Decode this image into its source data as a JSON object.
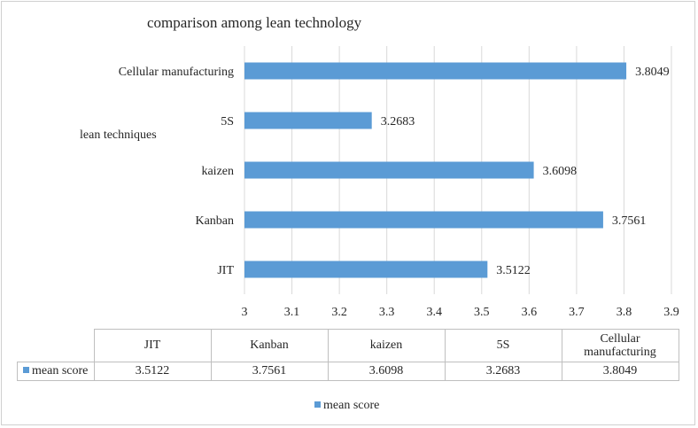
{
  "chart_data": {
    "type": "bar",
    "orientation": "horizontal",
    "title": "comparison among lean technology",
    "ylabel": "lean techniques",
    "xlabel": "",
    "categories": [
      "JIT",
      "Kanban",
      "kaizen",
      "5S",
      "Cellular manufacturing"
    ],
    "category_labels_in_table": [
      "JIT",
      "Kanban",
      "kaizen",
      "5S",
      "Cellular\nmanufacturing"
    ],
    "series": [
      {
        "name": "mean score",
        "values": [
          3.5122,
          3.7561,
          3.6098,
          3.2683,
          3.8049
        ],
        "value_labels": [
          "3.5122",
          "3.7561",
          "3.6098",
          "3.2683",
          "3.8049"
        ],
        "color": "#5b9bd5"
      }
    ],
    "xlim": [
      3,
      3.9
    ],
    "xticks": [
      "3",
      "3.1",
      "3.2",
      "3.3",
      "3.4",
      "3.5",
      "3.6",
      "3.7",
      "3.8",
      "3.9"
    ],
    "grid": "vertical major gridlines",
    "data_table": true,
    "legend": {
      "position": "bottom",
      "entries": [
        "mean score"
      ]
    }
  }
}
